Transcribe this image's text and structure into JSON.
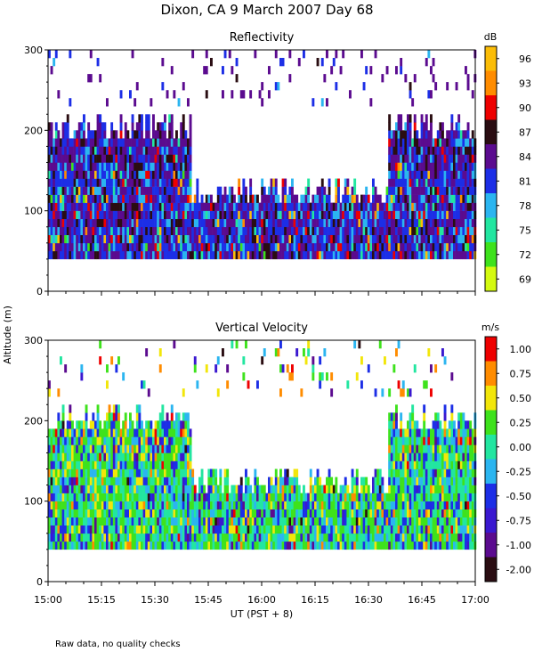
{
  "figure": {
    "title": "Dixon, CA   9 March 2007   Day  68",
    "ylabel": "Altitude  (m)",
    "xlabel": "UT  (PST + 8)",
    "note": "Raw data, no quality checks"
  },
  "chart_data": [
    {
      "type": "heatmap",
      "title": "Reflectivity",
      "xlabel": "UT  (PST + 8)",
      "ylabel": "Altitude  (m)",
      "x_ticks": [
        "15:00",
        "15:15",
        "15:30",
        "15:45",
        "16:00",
        "16:15",
        "16:30",
        "16:45",
        "17:00"
      ],
      "xlim": [
        "15:00",
        "17:00"
      ],
      "y_ticks": [
        "0",
        "100",
        "200",
        "300"
      ],
      "ylim": [
        0,
        300
      ],
      "colorbar": {
        "unit": "dB",
        "labels": [
          "96",
          "93",
          "90",
          "87",
          "84",
          "81",
          "78",
          "75",
          "72",
          "69"
        ],
        "values": [
          96,
          93,
          90,
          87,
          84,
          81,
          78,
          75,
          72,
          69
        ],
        "colors": [
          "#fbbd08",
          "#ff8c00",
          "#ee0000",
          "#2a0d12",
          "#5b0b8f",
          "#1c2ee6",
          "#2bb5f0",
          "#22e6a0",
          "#3ee21c",
          "#d4fa10"
        ]
      },
      "cell_layers": [
        {
          "alt_range": [
            40,
            160
          ],
          "level_weights": [
            2,
            1,
            4,
            12,
            30,
            32,
            14,
            4,
            1,
            0
          ]
        },
        {
          "alt_range": [
            160,
            220
          ],
          "level_weights": [
            0,
            0,
            2,
            18,
            45,
            25,
            8,
            2,
            0,
            0
          ]
        },
        {
          "alt_range": [
            220,
            300
          ],
          "level_weights": [
            0,
            0,
            0,
            10,
            60,
            25,
            5,
            0,
            0,
            0
          ]
        }
      ],
      "time_segments": [
        {
          "from": "15:00",
          "to": "15:40",
          "echo_top": 200,
          "dominant": "84-90"
        },
        {
          "from": "15:40",
          "to": "16:35",
          "echo_top": 120,
          "dominant": "75-81"
        },
        {
          "from": "16:35",
          "to": "17:00",
          "echo_top": 200,
          "dominant": "78-84"
        }
      ]
    },
    {
      "type": "heatmap",
      "title": "Vertical Velocity",
      "xlabel": "UT  (PST + 8)",
      "ylabel": "Altitude  (m)",
      "x_ticks": [
        "15:00",
        "15:15",
        "15:30",
        "15:45",
        "16:00",
        "16:15",
        "16:30",
        "16:45",
        "17:00"
      ],
      "xlim": [
        "15:00",
        "17:00"
      ],
      "y_ticks": [
        "0",
        "100",
        "200",
        "300"
      ],
      "ylim": [
        0,
        300
      ],
      "colorbar": {
        "unit": "m/s",
        "labels": [
          "1.00",
          "0.75",
          "0.50",
          "0.25",
          "0.00",
          "-0.25",
          "-0.50",
          "-0.75",
          "-1.00",
          "-2.00"
        ],
        "values": [
          1.0,
          0.75,
          0.5,
          0.25,
          0.0,
          -0.25,
          -0.5,
          -0.75,
          -1.0,
          -2.0
        ],
        "colors": [
          "#ee0000",
          "#ff8c00",
          "#f2e60a",
          "#3ee21c",
          "#22e6a0",
          "#2bb5f0",
          "#1c2ee6",
          "#3a18d0",
          "#5b0b8f",
          "#2a0d12"
        ]
      },
      "cell_layers": [
        {
          "alt_range": [
            40,
            160
          ],
          "level_weights": [
            1,
            2,
            10,
            28,
            25,
            14,
            12,
            5,
            2,
            1
          ]
        },
        {
          "alt_range": [
            160,
            220
          ],
          "level_weights": [
            2,
            4,
            12,
            24,
            20,
            16,
            12,
            6,
            3,
            1
          ]
        },
        {
          "alt_range": [
            220,
            300
          ],
          "level_weights": [
            10,
            10,
            15,
            15,
            15,
            10,
            10,
            8,
            5,
            2
          ]
        }
      ],
      "time_segments": [
        {
          "from": "15:00",
          "to": "15:40",
          "echo_top": 200,
          "dominant": "0.00-0.50"
        },
        {
          "from": "15:40",
          "to": "16:35",
          "echo_top": 120,
          "dominant": "0.00-0.25"
        },
        {
          "from": "16:35",
          "to": "17:00",
          "echo_top": 200,
          "dominant": "0.00-0.50"
        }
      ]
    }
  ]
}
